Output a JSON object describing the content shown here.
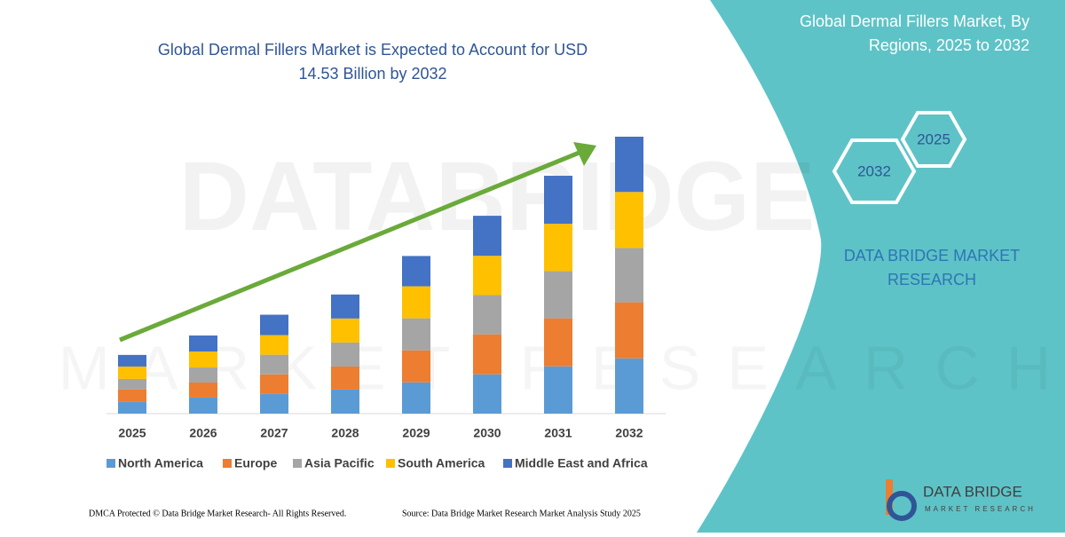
{
  "chart_data": {
    "type": "bar",
    "stacked": true,
    "title": [
      "Global Dermal Fillers Market is Expected to Account for USD",
      "14.53 Billion by 2032"
    ],
    "categories": [
      "2025",
      "2026",
      "2027",
      "2028",
      "2029",
      "2030",
      "2031",
      "2032"
    ],
    "series": [
      {
        "name": "North America",
        "color": "#5b9bd5",
        "values": [
          0.61,
          0.84,
          1.03,
          1.26,
          1.64,
          2.06,
          2.48,
          2.9
        ]
      },
      {
        "name": "Europe",
        "color": "#ed7d31",
        "values": [
          0.65,
          0.79,
          1.03,
          1.21,
          1.68,
          2.1,
          2.52,
          2.94
        ]
      },
      {
        "name": "Asia Pacific",
        "color": "#a5a5a5",
        "values": [
          0.56,
          0.79,
          1.03,
          1.26,
          1.68,
          2.06,
          2.48,
          2.85
        ]
      },
      {
        "name": "South America",
        "color": "#ffc000",
        "values": [
          0.65,
          0.84,
          1.03,
          1.26,
          1.68,
          2.06,
          2.48,
          2.94
        ]
      },
      {
        "name": "Middle East and Africa",
        "color": "#4472c4",
        "values": [
          0.61,
          0.84,
          1.07,
          1.26,
          1.59,
          2.1,
          2.52,
          2.9
        ]
      }
    ],
    "legend": "bottom"
  },
  "panel": {
    "title": [
      "Global Dermal Fillers Market, By",
      "Regions, 2025 to 2032"
    ],
    "hexagons": [
      "2025",
      "2032"
    ],
    "brand": [
      "DATA BRIDGE MARKET",
      "RESEARCH"
    ]
  },
  "watermark": [
    "DATABRIDGE",
    "MARKET RESEARCH"
  ],
  "logo": {
    "name": "DATA BRIDGE",
    "tagline": "MARKET RESEARCH"
  },
  "footer": {
    "copyright": "DMCA Protected © Data Bridge Market Research- All Rights Reserved.",
    "source": "Source: Data Bridge Market Research  Market Analysis Study 2025"
  }
}
